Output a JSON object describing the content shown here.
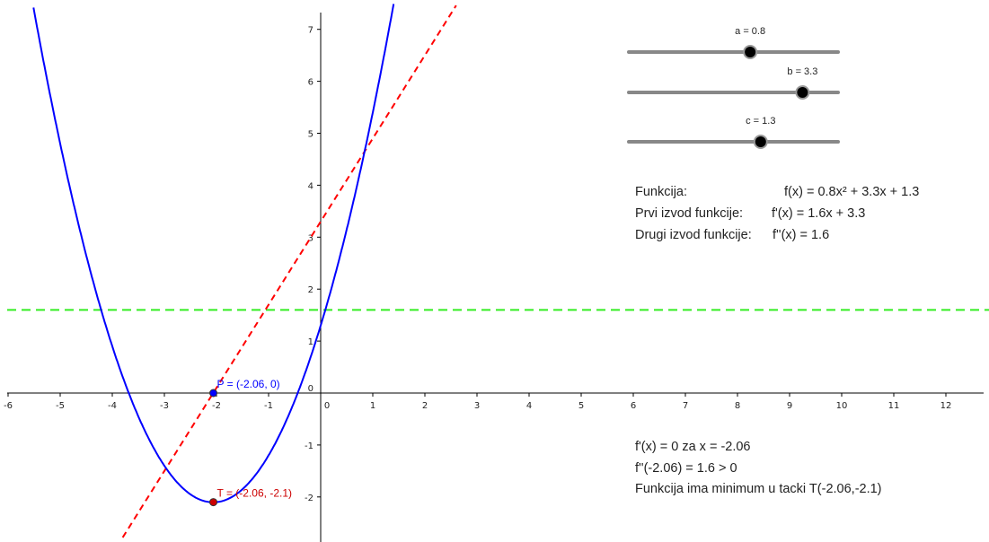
{
  "sliders": [
    {
      "name": "a",
      "label": "a = 0.8",
      "value": 0.8,
      "min": -5,
      "max": 5,
      "color": "#000000"
    },
    {
      "name": "b",
      "label": "b = 3.3",
      "value": 3.3,
      "min": -5,
      "max": 5,
      "color": "#000000"
    },
    {
      "name": "c",
      "label": "c = 1.3",
      "value": 1.3,
      "min": -5,
      "max": 5,
      "color": "#000000"
    }
  ],
  "info": {
    "function_label": "Funkcija:",
    "function_value": "f(x) = 0.8x² + 3.3x + 1.3",
    "first_derivative_label": "Prvi izvod funkcije:",
    "first_derivative_value": "f'(x) = 1.6x + 3.3",
    "second_derivative_label": "Drugi izvod funkcije:",
    "second_derivative_value": "f''(x) = 1.6"
  },
  "analysis": {
    "line1": "f'(x) = 0  za  x = -2.06",
    "line2": "f''(-2.06) = 1.6 > 0",
    "line3": "Funkcija ima minimum u tacki T(-2.06,-2.1)"
  },
  "points": {
    "P": {
      "label": "P = (-2.06, 0)",
      "x": -2.06,
      "y": 0,
      "color": "#0000ff"
    },
    "T": {
      "label": "T = (-2.06, -2.1)",
      "x": -2.06,
      "y": -2.1,
      "color": "#cc0000"
    }
  },
  "chart_data": {
    "type": "line",
    "x_range": [
      -6,
      12.8
    ],
    "y_range": [
      -2.9,
      7.4
    ],
    "x_ticks": [
      "-6",
      "-5",
      "-4",
      "-3",
      "-2",
      "-1",
      "0",
      "1",
      "2",
      "3",
      "4",
      "5",
      "6",
      "7",
      "8",
      "9",
      "10",
      "11",
      "12"
    ],
    "y_ticks": [
      "-2",
      "-1",
      "0",
      "1",
      "2",
      "3",
      "4",
      "5",
      "6",
      "7"
    ],
    "grid": false,
    "coefficients": {
      "a": 0.8,
      "b": 3.3,
      "c": 1.3
    },
    "series": [
      {
        "kind": "parabola",
        "color": "#0000ff",
        "style": "solid"
      },
      {
        "kind": "first-derivative-line",
        "color": "#ff0000",
        "style": "dashed"
      },
      {
        "kind": "second-derivative-line",
        "color": "#33ee22",
        "style": "dashed"
      }
    ]
  },
  "colors": {
    "axis": "#000000",
    "slider_track": "#888888",
    "slider_knob": "#000000"
  }
}
